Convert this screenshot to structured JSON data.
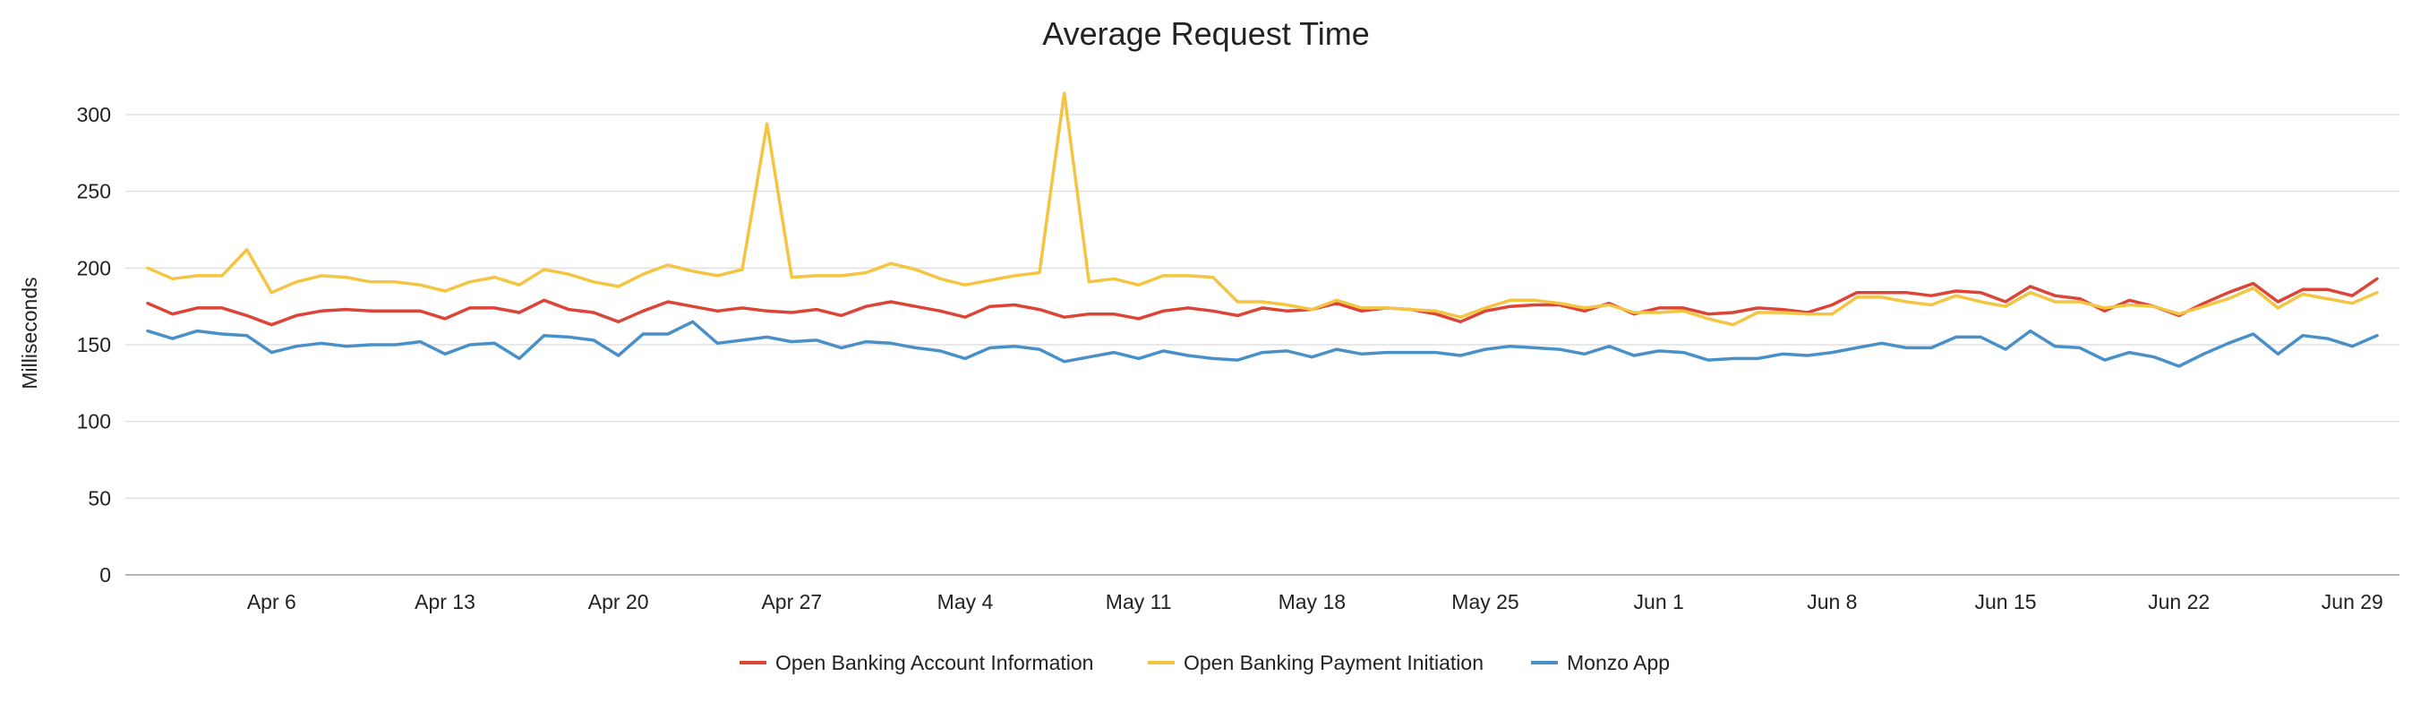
{
  "chart_data": {
    "type": "line",
    "title": "Average Request Time",
    "xlabel": "",
    "ylabel": "Milliseconds",
    "ylim": [
      0,
      300
    ],
    "yticks": [
      "0",
      "50",
      "100",
      "150",
      "200",
      "250",
      "300"
    ],
    "x_start": "Mar 31",
    "x_ticks": [
      {
        "label": "Apr 6",
        "day": 6
      },
      {
        "label": "Apr 13",
        "day": 13
      },
      {
        "label": "Apr 20",
        "day": 20
      },
      {
        "label": "Apr 27",
        "day": 27
      },
      {
        "label": "May 4",
        "day": 34
      },
      {
        "label": "May 11",
        "day": 41
      },
      {
        "label": "May 18",
        "day": 48
      },
      {
        "label": "May 25",
        "day": 55
      },
      {
        "label": "Jun 1",
        "day": 62
      },
      {
        "label": "Jun 8",
        "day": 69
      },
      {
        "label": "Jun 15",
        "day": 76
      },
      {
        "label": "Jun 22",
        "day": 83
      },
      {
        "label": "Jun 29",
        "day": 90
      }
    ],
    "grid": true,
    "legend_position": "bottom",
    "series": [
      {
        "name": "Open Banking Account Information",
        "color": "#db4437",
        "values": [
          177,
          170,
          174,
          174,
          169,
          163,
          169,
          172,
          173,
          172,
          172,
          172,
          167,
          174,
          174,
          171,
          179,
          173,
          171,
          165,
          172,
          178,
          175,
          172,
          174,
          172,
          171,
          173,
          169,
          175,
          178,
          175,
          172,
          168,
          175,
          176,
          173,
          168,
          170,
          170,
          167,
          172,
          174,
          172,
          169,
          174,
          172,
          173,
          177,
          172,
          174,
          173,
          170,
          165,
          172,
          175,
          176,
          176,
          172,
          177,
          170,
          174,
          174,
          170,
          171,
          174,
          173,
          171,
          176,
          184,
          184,
          184,
          182,
          185,
          184,
          178,
          188,
          182,
          180,
          172,
          179,
          175,
          169,
          177,
          184,
          190,
          178,
          186,
          186,
          182,
          193
        ]
      },
      {
        "name": "Open Banking Payment Initiation",
        "color": "#f4c542",
        "values": [
          200,
          193,
          195,
          195,
          212,
          184,
          191,
          195,
          194,
          191,
          191,
          189,
          185,
          191,
          194,
          189,
          199,
          196,
          191,
          188,
          196,
          202,
          198,
          195,
          199,
          294,
          194,
          195,
          195,
          197,
          203,
          199,
          193,
          189,
          192,
          195,
          197,
          314,
          191,
          193,
          189,
          195,
          195,
          194,
          178,
          178,
          176,
          173,
          179,
          174,
          174,
          173,
          172,
          168,
          174,
          179,
          179,
          177,
          174,
          176,
          171,
          171,
          172,
          167,
          163,
          171,
          171,
          170,
          170,
          181,
          181,
          178,
          176,
          182,
          178,
          175,
          184,
          178,
          178,
          174,
          176,
          175,
          170,
          175,
          180,
          187,
          174,
          183,
          180,
          177,
          184
        ]
      },
      {
        "name": "Monzo App",
        "color": "#4a90c8",
        "values": [
          159,
          154,
          159,
          157,
          156,
          145,
          149,
          151,
          149,
          150,
          150,
          152,
          144,
          150,
          151,
          141,
          156,
          155,
          153,
          143,
          157,
          157,
          165,
          151,
          153,
          155,
          152,
          153,
          148,
          152,
          151,
          148,
          146,
          141,
          148,
          149,
          147,
          139,
          142,
          145,
          141,
          146,
          143,
          141,
          140,
          145,
          146,
          142,
          147,
          144,
          145,
          145,
          145,
          143,
          147,
          149,
          148,
          147,
          144,
          149,
          143,
          146,
          145,
          140,
          141,
          141,
          144,
          143,
          145,
          148,
          151,
          148,
          148,
          155,
          155,
          147,
          159,
          149,
          148,
          140,
          145,
          142,
          136,
          144,
          151,
          157,
          144,
          156,
          154,
          149,
          156
        ]
      }
    ]
  }
}
